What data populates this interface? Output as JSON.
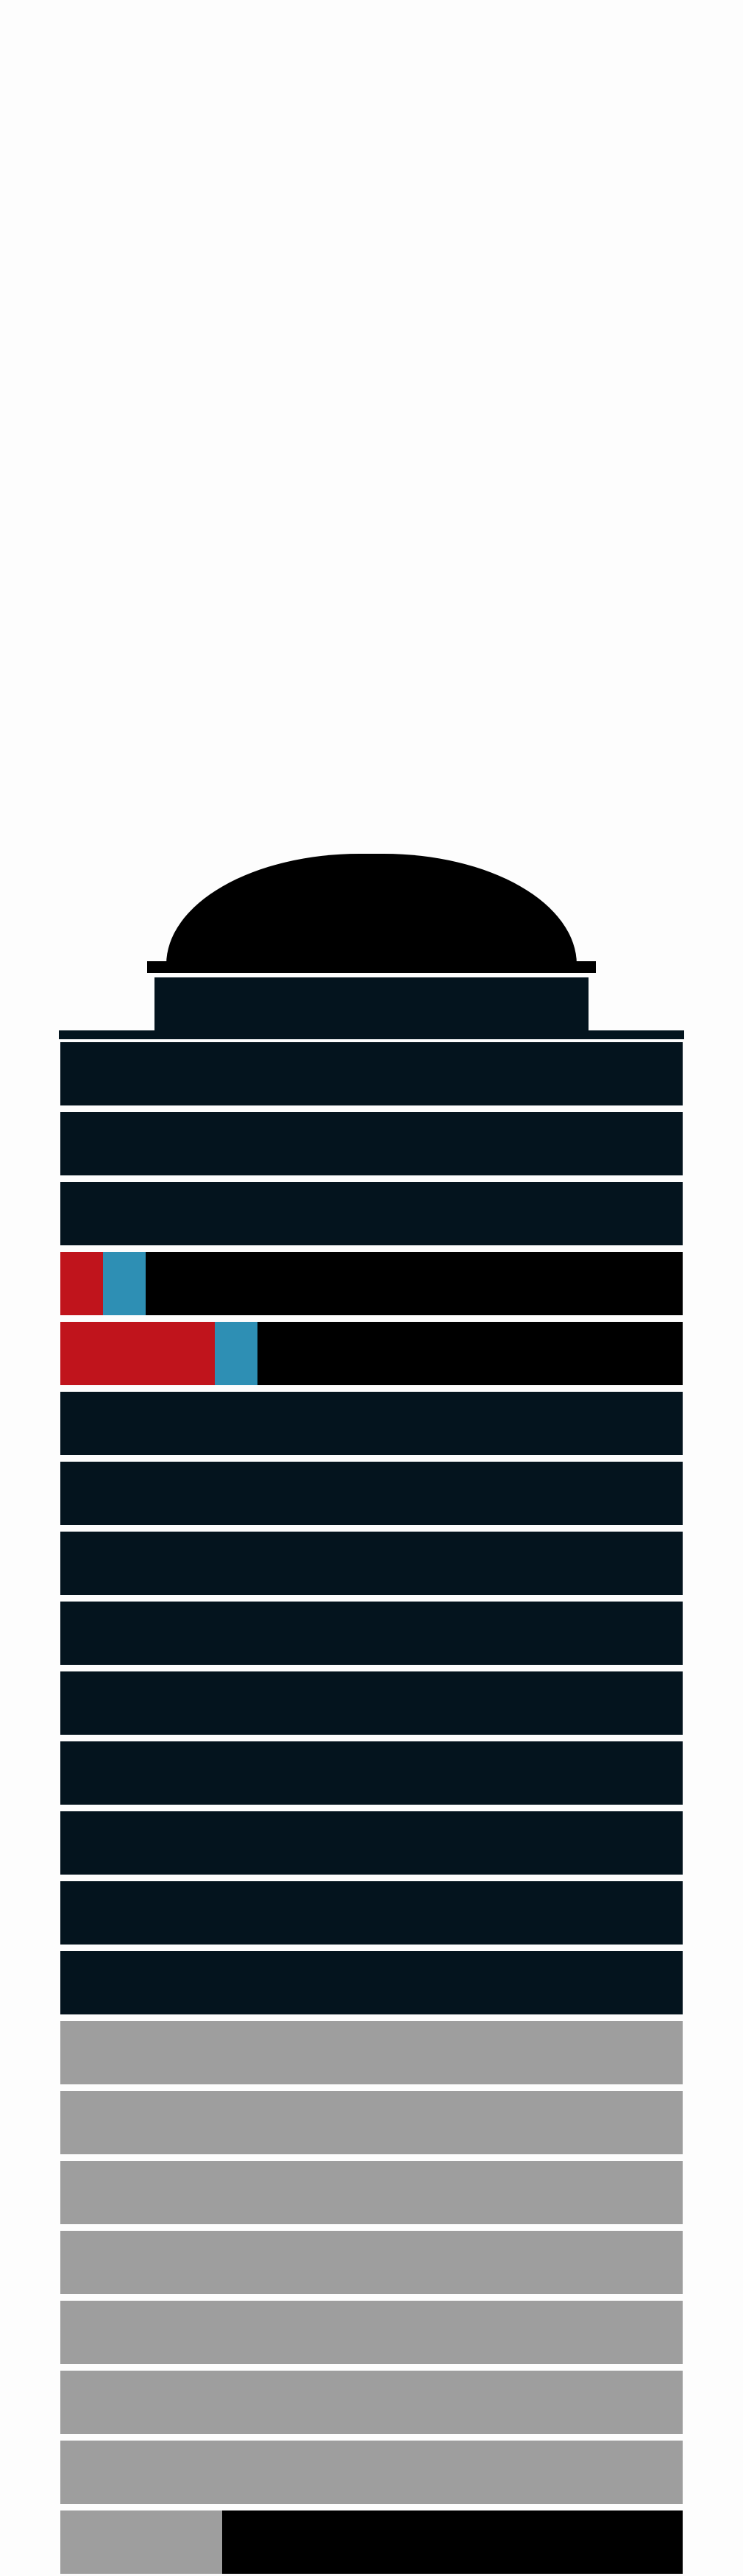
{
  "colors": {
    "background": "#fdfdfd",
    "dark": "#04141e",
    "black": "#000000",
    "gray": "#9e9e9e",
    "red": "#c0141c",
    "blue": "#2e8fb4"
  },
  "floors": [
    {
      "segments": [
        {
          "color": "#04141e",
          "fraction": 1
        }
      ]
    },
    {
      "segments": [
        {
          "color": "#04141e",
          "fraction": 1
        }
      ]
    },
    {
      "segments": [
        {
          "color": "#04141e",
          "fraction": 1
        }
      ]
    },
    {
      "segments": [
        {
          "color": "#c0141c",
          "fraction": 0.069
        },
        {
          "color": "#2e8fb4",
          "fraction": 0.069
        },
        {
          "color": "#000000",
          "fraction": 0.862
        }
      ]
    },
    {
      "segments": [
        {
          "color": "#c0141c",
          "fraction": 0.248
        },
        {
          "color": "#2e8fb4",
          "fraction": 0.069
        },
        {
          "color": "#000000",
          "fraction": 0.683
        }
      ]
    },
    {
      "segments": [
        {
          "color": "#04141e",
          "fraction": 1
        }
      ]
    },
    {
      "segments": [
        {
          "color": "#04141e",
          "fraction": 1
        }
      ]
    },
    {
      "segments": [
        {
          "color": "#04141e",
          "fraction": 1
        }
      ]
    },
    {
      "segments": [
        {
          "color": "#04141e",
          "fraction": 1
        }
      ]
    },
    {
      "segments": [
        {
          "color": "#04141e",
          "fraction": 1
        }
      ]
    },
    {
      "segments": [
        {
          "color": "#04141e",
          "fraction": 1
        }
      ]
    },
    {
      "segments": [
        {
          "color": "#04141e",
          "fraction": 1
        }
      ]
    },
    {
      "segments": [
        {
          "color": "#04141e",
          "fraction": 1
        }
      ]
    },
    {
      "segments": [
        {
          "color": "#04141e",
          "fraction": 1
        }
      ]
    },
    {
      "segments": [
        {
          "color": "#9e9e9e",
          "fraction": 1
        }
      ]
    },
    {
      "segments": [
        {
          "color": "#9e9e9e",
          "fraction": 1
        }
      ]
    },
    {
      "segments": [
        {
          "color": "#9e9e9e",
          "fraction": 1
        }
      ]
    },
    {
      "segments": [
        {
          "color": "#9e9e9e",
          "fraction": 1
        }
      ]
    },
    {
      "segments": [
        {
          "color": "#9e9e9e",
          "fraction": 1
        }
      ]
    },
    {
      "segments": [
        {
          "color": "#9e9e9e",
          "fraction": 1
        }
      ]
    },
    {
      "segments": [
        {
          "color": "#9e9e9e",
          "fraction": 1
        }
      ]
    },
    {
      "segments": [
        {
          "color": "#9e9e9e",
          "fraction": 0.26
        },
        {
          "color": "#000000",
          "fraction": 0.74
        }
      ]
    }
  ]
}
